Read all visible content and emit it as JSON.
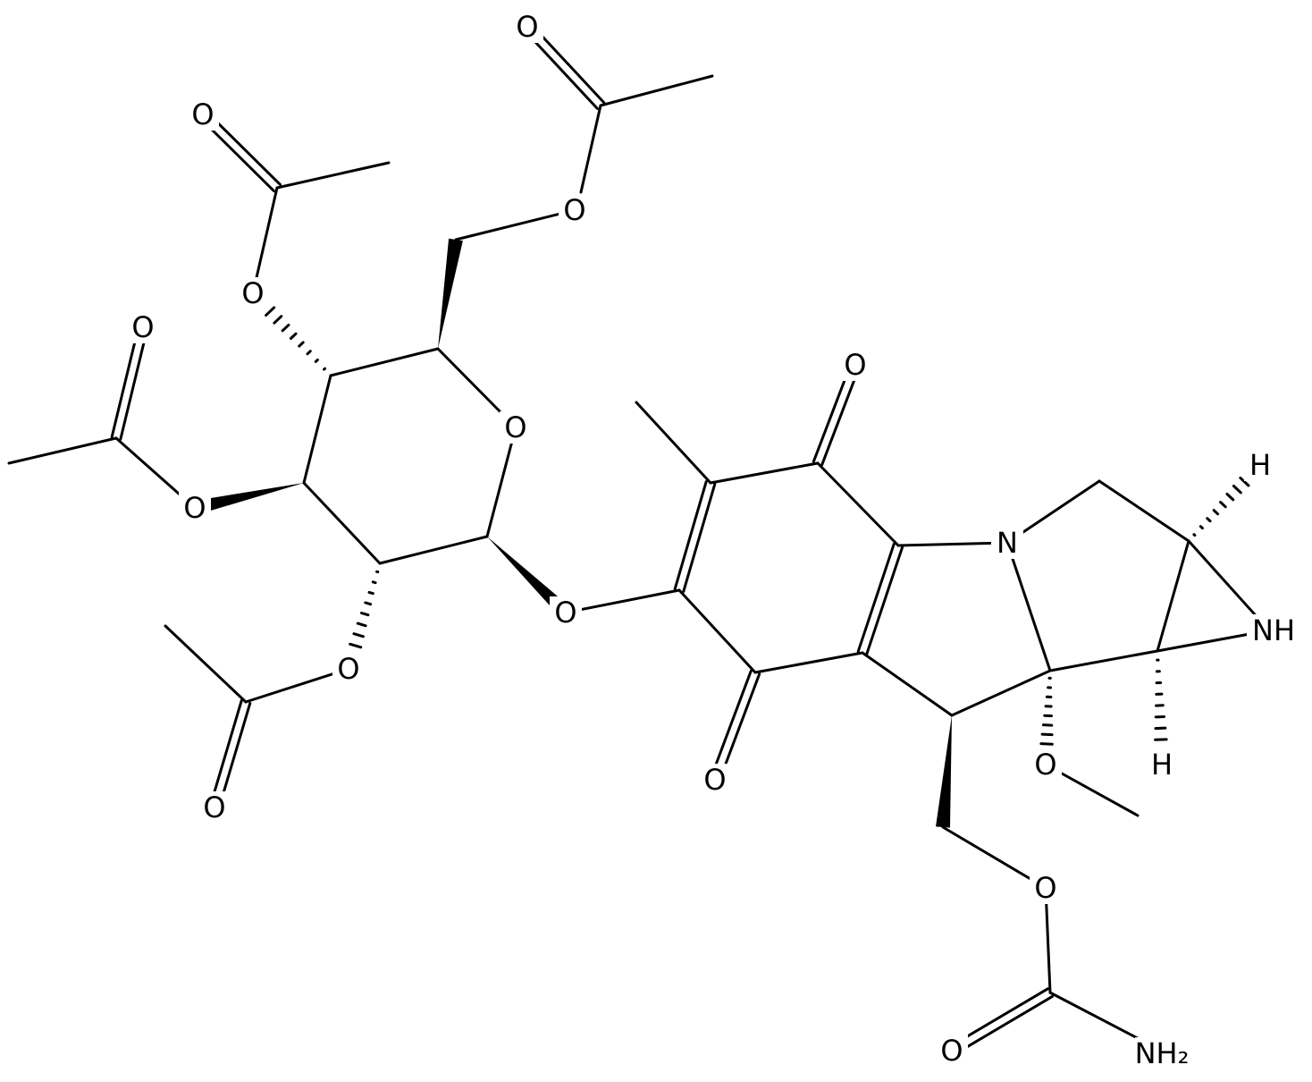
{
  "labels": [
    "O",
    "O",
    "O",
    "O",
    "O",
    "O",
    "O",
    "O",
    "O",
    "O",
    "O",
    "O",
    "N",
    "H",
    "NH",
    "H",
    "O",
    "O",
    "O",
    "NH₂"
  ]
}
